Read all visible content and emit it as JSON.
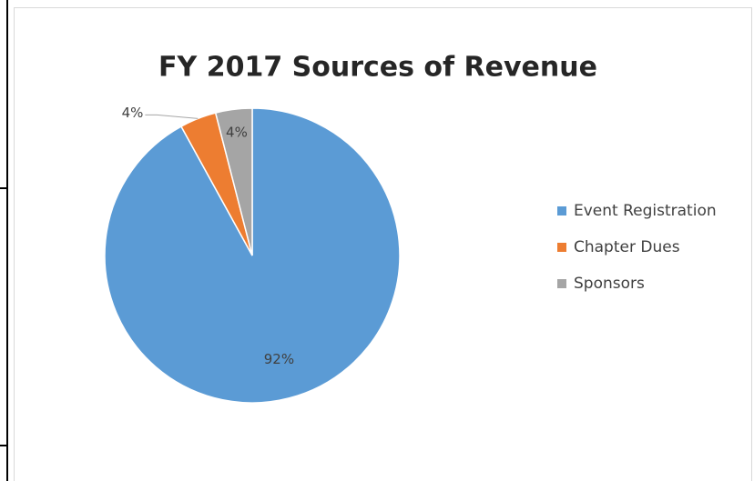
{
  "chart_data": {
    "type": "pie",
    "title": "FY 2017 Sources of Revenue",
    "categories": [
      "Event Registration",
      "Chapter Dues",
      "Sponsors"
    ],
    "values": [
      92,
      4,
      4
    ],
    "value_labels": [
      "92%",
      "4%",
      "4%"
    ],
    "colors": [
      "#5b9bd5",
      "#ed7d31",
      "#a5a5a5"
    ],
    "legend": "right"
  }
}
